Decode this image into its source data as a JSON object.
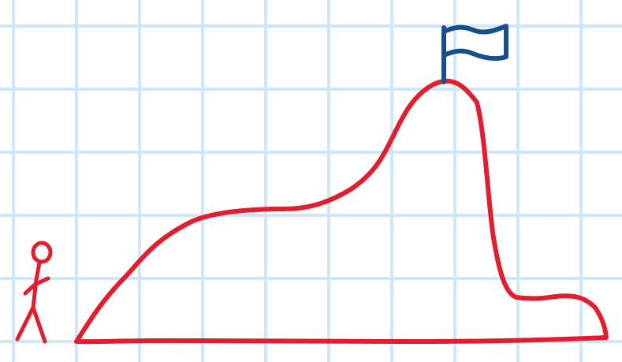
{
  "drawing": {
    "background_color": "#ffffff",
    "grid_color": "#cfe7f8",
    "mountain_color": "#e11d2e",
    "person_color": "#e11d2e",
    "flag_color": "#174f8c"
  },
  "icons": [
    "stick-figure-icon",
    "flag-icon"
  ]
}
